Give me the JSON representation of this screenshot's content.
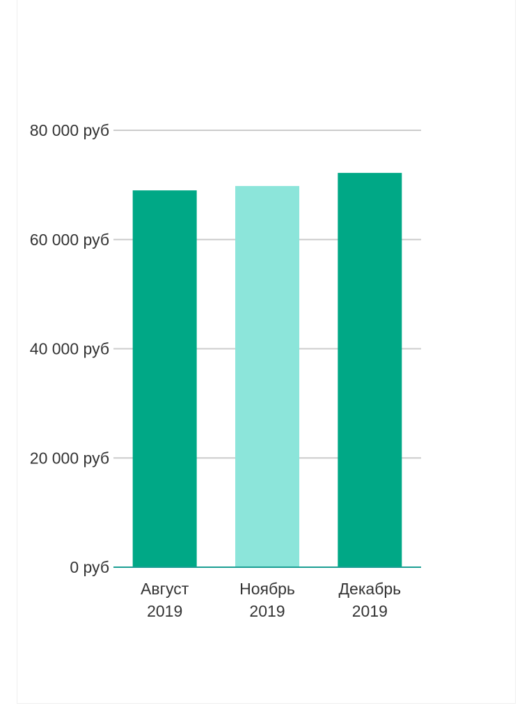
{
  "chart_data": {
    "type": "bar",
    "categories": [
      [
        "Август",
        "2019"
      ],
      [
        "Ноябрь",
        "2019"
      ],
      [
        "Декабрь",
        "2019"
      ]
    ],
    "values": [
      69000,
      69800,
      72200
    ],
    "colors": [
      "#00a886",
      "#8ce5da",
      "#00a886"
    ],
    "ylim": [
      0,
      80000
    ],
    "yticks": [
      {
        "value": 0,
        "label": "0 руб"
      },
      {
        "value": 20000,
        "label": "20 000 руб"
      },
      {
        "value": 40000,
        "label": "40 000 руб"
      },
      {
        "value": 60000,
        "label": "60 000 руб"
      },
      {
        "value": 80000,
        "label": "80 000 руб"
      }
    ],
    "grid": true,
    "gridColor": "#cccccc",
    "axisColor": "#1a9e93"
  }
}
